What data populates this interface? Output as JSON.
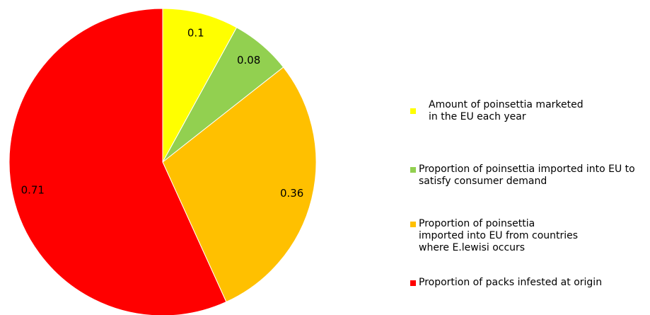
{
  "chart_data": {
    "type": "pie",
    "categories": [
      "Amount of poinsettia marketed in the EU each year",
      "Proportion of poinsettia imported into EU to satisfy consumer demand",
      "Proportion of poinsettia imported into EU from countries where E.lewisi occurs",
      "Proportion of packs infested at origin"
    ],
    "values": [
      0.1,
      0.08,
      0.36,
      0.71
    ],
    "colors": [
      "#ffff00",
      "#92d050",
      "#ffc000",
      "#ff0000"
    ],
    "legend": "right"
  }
}
